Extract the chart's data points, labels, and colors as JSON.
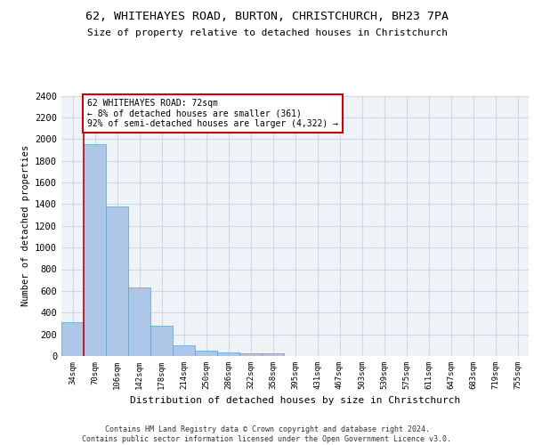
{
  "title_line1": "62, WHITEHAYES ROAD, BURTON, CHRISTCHURCH, BH23 7PA",
  "title_line2": "Size of property relative to detached houses in Christchurch",
  "xlabel": "Distribution of detached houses by size in Christchurch",
  "ylabel": "Number of detached properties",
  "categories": [
    "34sqm",
    "70sqm",
    "106sqm",
    "142sqm",
    "178sqm",
    "214sqm",
    "250sqm",
    "286sqm",
    "322sqm",
    "358sqm",
    "395sqm",
    "431sqm",
    "467sqm",
    "503sqm",
    "539sqm",
    "575sqm",
    "611sqm",
    "647sqm",
    "683sqm",
    "719sqm",
    "755sqm"
  ],
  "bar_heights": [
    315,
    1950,
    1380,
    630,
    275,
    100,
    50,
    35,
    28,
    22,
    0,
    0,
    0,
    0,
    0,
    0,
    0,
    0,
    0,
    0,
    0
  ],
  "bar_color": "#aec6e8",
  "bar_edge_color": "#5a9fd4",
  "vline_color": "#cc0000",
  "annotation_text": "62 WHITEHAYES ROAD: 72sqm\n← 8% of detached houses are smaller (361)\n92% of semi-detached houses are larger (4,322) →",
  "annotation_box_color": "#ffffff",
  "annotation_box_edge_color": "#cc0000",
  "ylim": [
    0,
    2400
  ],
  "yticks": [
    0,
    200,
    400,
    600,
    800,
    1000,
    1200,
    1400,
    1600,
    1800,
    2000,
    2200,
    2400
  ],
  "grid_color": "#d0d8e0",
  "bg_color": "#eef3f8",
  "footer_line1": "Contains HM Land Registry data © Crown copyright and database right 2024.",
  "footer_line2": "Contains public sector information licensed under the Open Government Licence v3.0."
}
